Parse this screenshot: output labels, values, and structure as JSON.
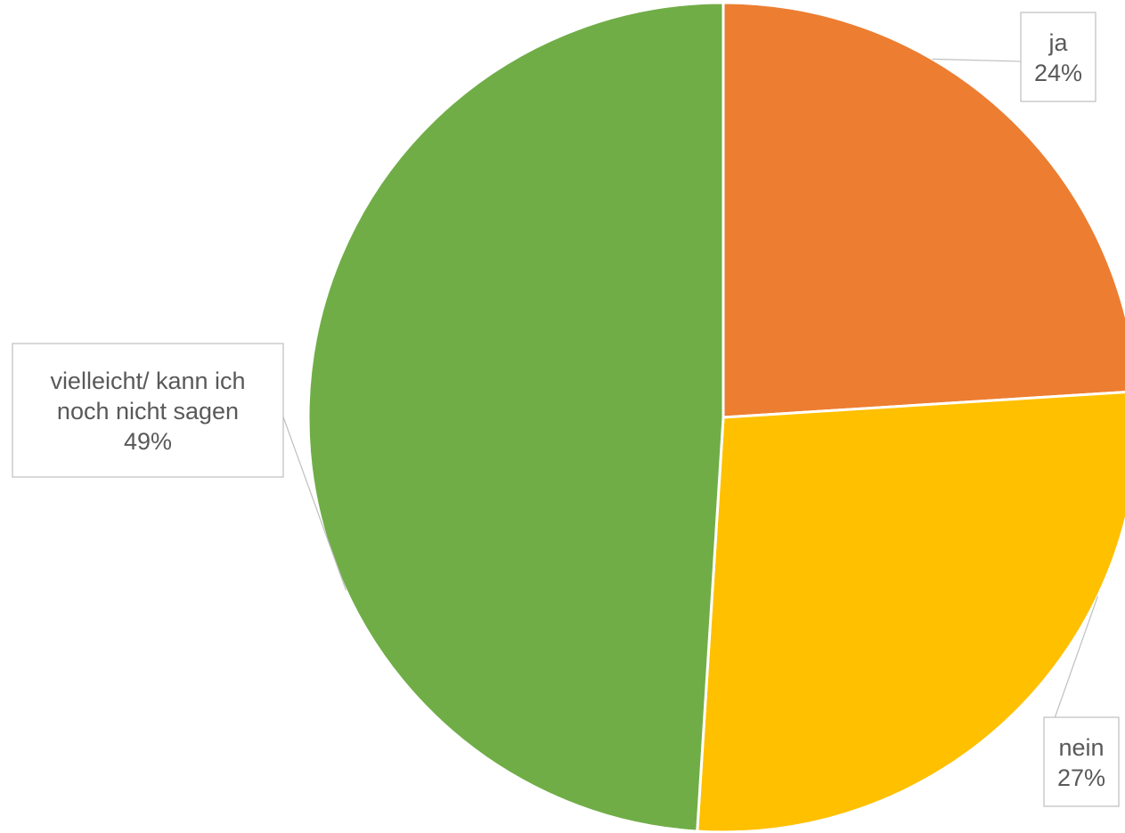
{
  "chart_data": {
    "type": "pie",
    "title": "",
    "labels": [
      "ja",
      "nein",
      "vielleicht/ kann ich noch nicht sagen"
    ],
    "label_lines": [
      [
        "ja"
      ],
      [
        "nein"
      ],
      [
        "vielleicht/ kann ich",
        "noch nicht sagen"
      ]
    ],
    "values": [
      24,
      27,
      49
    ],
    "value_labels": [
      "24%",
      "27%",
      "49%"
    ],
    "colors": [
      "#ED7D31",
      "#FFC000",
      "#70AD47"
    ],
    "start_angle": "12 o'clock",
    "direction": "clockwise",
    "legend": "none",
    "data_labels": "callouts outside slices"
  }
}
